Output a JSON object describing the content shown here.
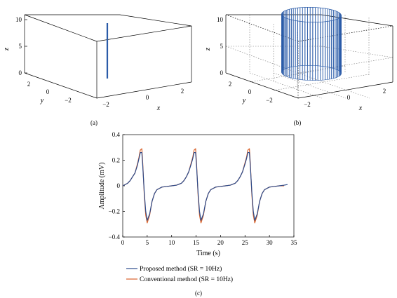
{
  "chart_data": [
    {
      "type": "3d-line",
      "panel": "(a)",
      "xlabel": "x",
      "ylabel": "y",
      "zlabel": "z",
      "x_ticks": [
        "−2",
        "0",
        "2"
      ],
      "y_ticks": [
        "2",
        "0",
        "−2"
      ],
      "z_ticks": [
        "0",
        "5",
        "10"
      ],
      "xlim": [
        -3,
        3
      ],
      "ylim": [
        -3,
        3
      ],
      "zlim": [
        0,
        10
      ],
      "grid": false,
      "series": [
        {
          "x": [
            0,
            0
          ],
          "y": [
            0,
            0
          ],
          "z": [
            0,
            10
          ],
          "color": "#2a5ba8"
        }
      ]
    },
    {
      "type": "3d-line",
      "panel": "(b)",
      "xlabel": "x",
      "ylabel": "y",
      "zlabel": "z",
      "x_ticks": [
        "−2",
        "0",
        "2"
      ],
      "y_ticks": [
        "2",
        "0",
        "−2"
      ],
      "z_ticks": [
        "0",
        "5",
        "10"
      ],
      "xlim": [
        -3,
        3
      ],
      "ylim": [
        -3,
        3
      ],
      "zlim": [
        0,
        10
      ],
      "grid": true,
      "cylinder": {
        "radius": 1.5,
        "z": [
          0,
          10
        ],
        "line_count": 72,
        "color": "#2a5ba8"
      }
    },
    {
      "type": "line",
      "panel": "(c)",
      "xlabel": "Time (s)",
      "ylabel": "Amplitude (mV)",
      "xlim": [
        0,
        35
      ],
      "ylim": [
        -0.4,
        0.4
      ],
      "x_ticks": [
        "0",
        "5",
        "10",
        "15",
        "20",
        "25",
        "30",
        "35"
      ],
      "y_ticks": [
        "0.4",
        "0.2",
        "0",
        "−0.2",
        "−0.4"
      ],
      "legend_position": "bottom",
      "pulse_times": [
        4.2,
        15.2,
        26.2
      ],
      "series": [
        {
          "name": "Proposed method (SR = 10Hz)",
          "color": "#2b4b8c",
          "x": [
            0,
            1,
            1.5,
            2,
            2.5,
            3,
            3.3,
            3.6,
            3.9,
            4.1,
            4.4,
            4.7,
            5,
            5.5,
            6,
            6.5,
            7,
            8,
            9,
            10,
            11,
            12,
            12.5,
            13,
            13.5,
            14,
            14.3,
            14.6,
            14.9,
            15.1,
            15.4,
            15.7,
            16,
            16.5,
            17,
            17.5,
            18,
            19,
            20,
            21,
            22,
            23,
            23.5,
            24,
            24.5,
            25,
            25.3,
            25.6,
            25.9,
            26.1,
            26.4,
            26.7,
            27,
            27.5,
            28,
            28.5,
            29,
            30,
            31,
            32,
            33,
            33.7
          ],
          "y": [
            0.0,
            0.02,
            0.04,
            0.07,
            0.1,
            0.16,
            0.21,
            0.26,
            0.26,
            0.15,
            -0.05,
            -0.2,
            -0.27,
            -0.22,
            -0.12,
            -0.06,
            -0.03,
            -0.01,
            -0.005,
            0.0,
            0.005,
            0.02,
            0.04,
            0.07,
            0.11,
            0.17,
            0.21,
            0.26,
            0.26,
            0.15,
            -0.05,
            -0.2,
            -0.27,
            -0.22,
            -0.12,
            -0.06,
            -0.03,
            -0.01,
            -0.005,
            0.0,
            0.005,
            0.02,
            0.04,
            0.07,
            0.11,
            0.17,
            0.21,
            0.26,
            0.26,
            0.15,
            -0.05,
            -0.2,
            -0.27,
            -0.22,
            -0.12,
            -0.06,
            -0.03,
            -0.01,
            -0.005,
            0.0,
            0.005,
            0.01
          ]
        },
        {
          "name": "Conventional method (SR = 10Hz)",
          "color": "#d9622b",
          "x": [
            0,
            1,
            1.5,
            2,
            2.5,
            3,
            3.3,
            3.6,
            3.9,
            4.1,
            4.4,
            4.7,
            5,
            5.5,
            6,
            6.5,
            7,
            8,
            9,
            10,
            11,
            12,
            12.5,
            13,
            13.5,
            14,
            14.3,
            14.6,
            14.9,
            15.1,
            15.4,
            15.7,
            16,
            16.5,
            17,
            17.5,
            18,
            19,
            20,
            21,
            22,
            23,
            23.5,
            24,
            24.5,
            25,
            25.3,
            25.6,
            25.9,
            26.1,
            26.4,
            26.7,
            27,
            27.5,
            28,
            28.5,
            29,
            30,
            31,
            32,
            33
          ],
          "y": [
            0.0,
            0.02,
            0.04,
            0.07,
            0.1,
            0.17,
            0.22,
            0.28,
            0.29,
            0.17,
            -0.07,
            -0.23,
            -0.29,
            -0.23,
            -0.12,
            -0.06,
            -0.03,
            -0.01,
            -0.005,
            0.0,
            0.005,
            0.02,
            0.04,
            0.07,
            0.11,
            0.18,
            0.22,
            0.28,
            0.29,
            0.17,
            -0.07,
            -0.23,
            -0.29,
            -0.23,
            -0.12,
            -0.06,
            -0.03,
            -0.01,
            -0.005,
            0.0,
            0.005,
            0.02,
            0.04,
            0.07,
            0.11,
            0.18,
            0.22,
            0.28,
            0.29,
            0.17,
            -0.07,
            -0.23,
            -0.29,
            -0.23,
            -0.12,
            -0.06,
            -0.03,
            -0.01,
            -0.005,
            0.0,
            0.0
          ]
        }
      ]
    }
  ],
  "captions": {
    "a": "(a)",
    "b": "(b)",
    "c": "(c)"
  },
  "legend": {
    "proposed": "Proposed method (SR = 10Hz)",
    "conventional": "Conventional method (SR = 10Hz)"
  }
}
